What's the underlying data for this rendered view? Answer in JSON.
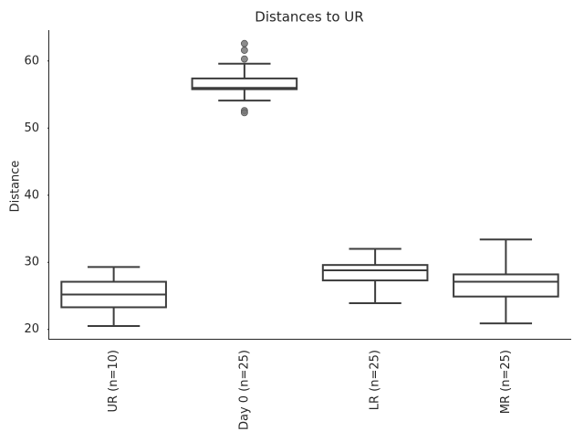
{
  "chart_data": {
    "type": "box",
    "title": "Distances to UR",
    "y_label": "Distance",
    "categories": [
      "UR (n=10)",
      "Day 0 (n=25)",
      "LR (n=25)",
      "MR (n=25)"
    ],
    "whislo": [
      20.5,
      54.1,
      23.9,
      20.9
    ],
    "q1": [
      23.3,
      55.8,
      27.3,
      24.9
    ],
    "median": [
      25.2,
      56.0,
      28.8,
      27.1
    ],
    "q3": [
      27.1,
      57.4,
      29.6,
      28.2
    ],
    "whishi": [
      29.3,
      59.6,
      32.0,
      33.4
    ],
    "outliers": [
      [],
      [
        62.6,
        61.6,
        60.3,
        52.6,
        52.3
      ],
      [],
      []
    ],
    "color": "#3d3d3d",
    "box_fill": "#ffffff",
    "outlier_color": "#777777",
    "ylim": [
      18.6,
      64.6
    ],
    "yticks": [
      20,
      30,
      40,
      50,
      60
    ],
    "grid": false
  }
}
